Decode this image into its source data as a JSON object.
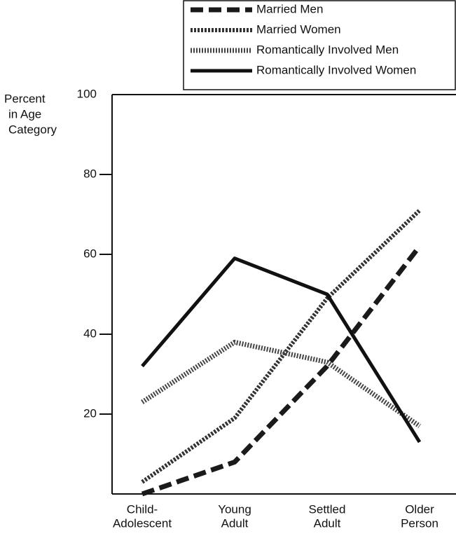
{
  "chart_data": {
    "type": "line",
    "ylabel": [
      "Percent",
      "in Age",
      "Category"
    ],
    "categories": [
      [
        "Child-",
        "Adolescent"
      ],
      [
        "Young",
        "Adult"
      ],
      [
        "Settled",
        "Adult"
      ],
      [
        "Older",
        "Person"
      ]
    ],
    "series": [
      {
        "name": "Married Men",
        "color": "#1a1a1a",
        "style": "dashed",
        "values": [
          0,
          8,
          32,
          62
        ]
      },
      {
        "name": "Married Women",
        "color": "#333333",
        "style": "hatched",
        "values": [
          3,
          19,
          49,
          71
        ]
      },
      {
        "name": "Romantically Involved Men",
        "color": "#444444",
        "style": "dotted",
        "values": [
          23,
          38,
          33,
          17
        ]
      },
      {
        "name": "Romantically Involved Women",
        "color": "#111111",
        "style": "solid",
        "values": [
          32,
          59,
          50,
          13
        ]
      }
    ],
    "ylim": [
      0,
      100
    ],
    "yticks": [
      20,
      40,
      60,
      80,
      100
    ],
    "legend": "top-right"
  }
}
